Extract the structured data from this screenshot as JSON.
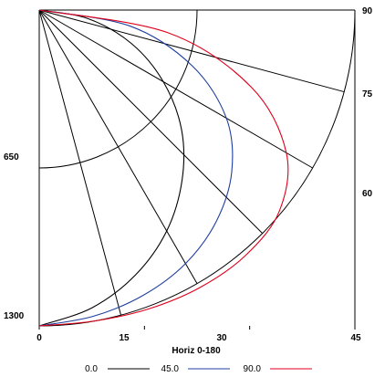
{
  "chart_data": {
    "type": "polar-luminous-intensity",
    "xlabel": "Horiz 0-180",
    "r_max": 1300,
    "angle_max": 90,
    "x_ticks": [
      "0",
      "15",
      "30",
      "45"
    ],
    "r_ticks": [
      "650",
      "1300"
    ],
    "angle_labels": [
      "90",
      "75",
      "60",
      "45"
    ],
    "radial_line_angles": [
      0,
      15,
      30,
      45,
      60,
      75,
      90
    ],
    "circle_radii": [
      650,
      1300
    ],
    "series": [
      {
        "name": "0.0",
        "color": "#000000",
        "points": [
          [
            0,
            1300
          ],
          [
            10,
            1245
          ],
          [
            20,
            1160
          ],
          [
            30,
            1050
          ],
          [
            40,
            915
          ],
          [
            50,
            765
          ],
          [
            60,
            590
          ],
          [
            70,
            405
          ],
          [
            80,
            205
          ],
          [
            90,
            0
          ]
        ]
      },
      {
        "name": "45.0",
        "color": "#1f3f9f",
        "points": [
          [
            0,
            1300
          ],
          [
            10,
            1280
          ],
          [
            20,
            1250
          ],
          [
            30,
            1205
          ],
          [
            40,
            1135
          ],
          [
            50,
            1035
          ],
          [
            60,
            890
          ],
          [
            70,
            670
          ],
          [
            80,
            380
          ],
          [
            90,
            0
          ]
        ]
      },
      {
        "name": "90.0",
        "color": "#e0001b",
        "points": [
          [
            0,
            1300
          ],
          [
            10,
            1300
          ],
          [
            20,
            1310
          ],
          [
            30,
            1320
          ],
          [
            40,
            1320
          ],
          [
            50,
            1290
          ],
          [
            60,
            1175
          ],
          [
            70,
            930
          ],
          [
            80,
            540
          ],
          [
            90,
            0
          ]
        ]
      }
    ]
  }
}
